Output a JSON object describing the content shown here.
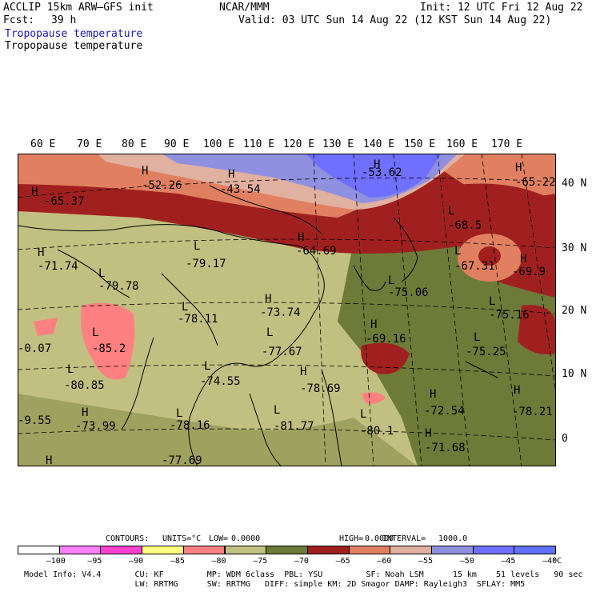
{
  "header": {
    "model": "ACCLIP 15km ARW–GFS init",
    "org": "NCAR/MMM",
    "init": "Init: 12 UTC Fri 12 Aug 22",
    "fcst_label": "Fcst:",
    "fcst_value": "39 h",
    "valid": "Valid: 03 UTC Sun 14 Aug 22 (12 KST Sun 14 Aug 22)",
    "field_line1": "Tropopause temperature",
    "field_line2": "Tropopause temperature"
  },
  "lon_labels": [
    "60 E",
    "70 E",
    "80 E",
    "90 E",
    "100 E",
    "110 E",
    "120 E",
    "130 E",
    "140 E",
    "150 E",
    "160 E",
    "170 E"
  ],
  "lat_labels": [
    "40 N",
    "30 N",
    "20 N",
    "10 N",
    "0"
  ],
  "pressure_centers": [
    {
      "type": "H",
      "value": "-65.37"
    },
    {
      "type": "H",
      "value": "-52.26"
    },
    {
      "type": "H",
      "value": "-43.54"
    },
    {
      "type": "H",
      "value": "-53.62"
    },
    {
      "type": "H",
      "value": "-65.22"
    },
    {
      "type": "L",
      "value": "-68.5"
    },
    {
      "type": "H",
      "value": "-71.74"
    },
    {
      "type": "L",
      "value": "-79.17"
    },
    {
      "type": "H",
      "value": "-64.69"
    },
    {
      "type": "L",
      "value": "-67.31"
    },
    {
      "type": "H",
      "value": "-69.9"
    },
    {
      "type": "L",
      "value": "-79.78"
    },
    {
      "type": "L",
      "value": "-75.06"
    },
    {
      "type": "H",
      "value": "-73.74"
    },
    {
      "type": "L",
      "value": "-78.11"
    },
    {
      "type": "L",
      "value": "-75.16"
    },
    {
      "type": "H",
      "value": "-69.16"
    },
    {
      "type": "L",
      "value": "-85.2"
    },
    {
      "type": "L",
      "value": "-77.67"
    },
    {
      "type": "L",
      "value": "-75.25"
    },
    {
      "type": "H",
      "value": "-0.07"
    },
    {
      "type": "L",
      "value": "-74.55"
    },
    {
      "type": "L",
      "value": "-80.85"
    },
    {
      "type": "H",
      "value": "-78.69"
    },
    {
      "type": "H",
      "value": "-72.54"
    },
    {
      "type": "H",
      "value": "-78.21"
    },
    {
      "type": "H",
      "value": "-73.99"
    },
    {
      "type": "H",
      "value": "-9.55"
    },
    {
      "type": "L",
      "value": "-78.16"
    },
    {
      "type": "L",
      "value": "-81.77"
    },
    {
      "type": "L",
      "value": "-80.1"
    },
    {
      "type": "H",
      "value": "-71.68"
    },
    {
      "type": "H",
      "value": "-77.69"
    },
    {
      "type": "H",
      "value": ""
    }
  ],
  "contour_info": {
    "contours": "CONTOURS:",
    "units": "UNITS=°C",
    "low": "LOW=",
    "low_value": "0.0000",
    "high": "HIGH=",
    "high_value": "0.0000",
    "interval": "INTERVAL=",
    "interval_value": "1000.0"
  },
  "colorbar": {
    "colors": [
      "#ffffff",
      "#ff80ff",
      "#ff40d0",
      "#ffff80",
      "#ff8080",
      "#c0c080",
      "#6e7a38",
      "#a02020",
      "#e08060",
      "#e0b0a0",
      "#9090e0",
      "#7070ff",
      "#6070ff"
    ],
    "labels": [
      "–100",
      "–95",
      "–90",
      "–85",
      "–80",
      "–75",
      "–70",
      "–65",
      "–60",
      "–55",
      "–50",
      "–45",
      "–40"
    ],
    "unit": "°C"
  },
  "model_info": {
    "line1": "Model Info: V4.4       CU: KF         MP: WDM 6class  PBL: YSU         SF: Noah LSM      15 km    51 levels   90 sec",
    "line2": "                       LW: RRTMG      SW: RRTMG   DIFF: simple KM: 2D Smagor DAMP: Rayleigh3  SFLAY: MM5"
  }
}
